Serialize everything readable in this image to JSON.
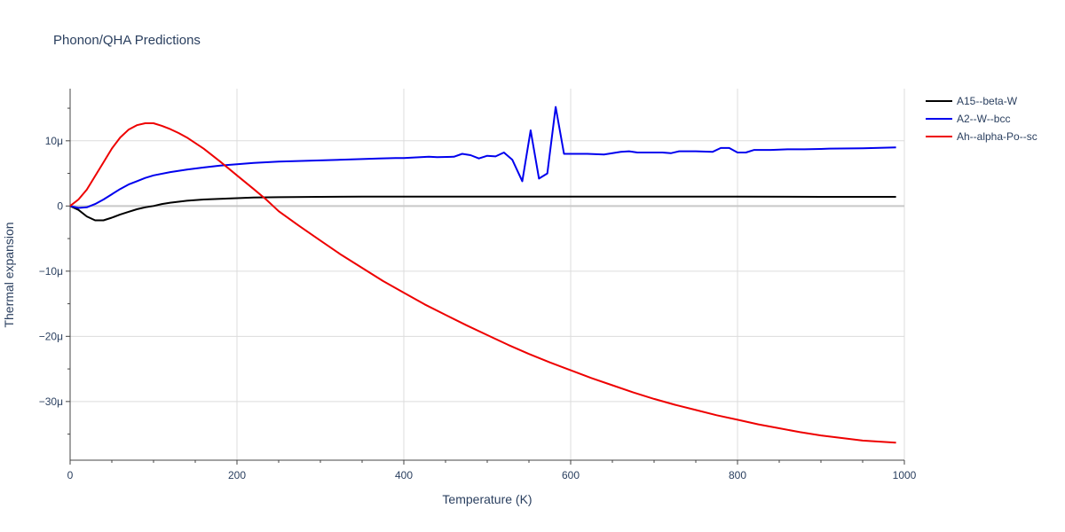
{
  "chart_data": {
    "type": "line",
    "title": "Phonon/QHA Predictions",
    "xlabel": "Temperature (K)",
    "ylabel": "Thermal expansion",
    "xlim": [
      0,
      1000
    ],
    "ylim": [
      -39,
      18
    ],
    "x_ticks": [
      0,
      200,
      400,
      600,
      800,
      1000
    ],
    "x_tick_labels": [
      "0",
      "200",
      "400",
      "600",
      "800",
      "1000"
    ],
    "y_ticks": [
      -30,
      -20,
      -10,
      0,
      10
    ],
    "y_tick_labels": [
      "−30μ",
      "−20μ",
      "−10μ",
      "0",
      "10μ"
    ],
    "grid": true,
    "legend_position": "top-right",
    "series": [
      {
        "name": "A15--beta-W",
        "color": "#000000",
        "x": [
          0,
          10,
          20,
          30,
          40,
          50,
          60,
          70,
          80,
          90,
          100,
          110,
          120,
          140,
          160,
          180,
          200,
          220,
          250,
          300,
          350,
          400,
          450,
          500,
          550,
          600,
          700,
          800,
          900,
          990
        ],
        "y": [
          0,
          -0.6,
          -1.6,
          -2.2,
          -2.2,
          -1.8,
          -1.3,
          -0.9,
          -0.5,
          -0.2,
          0.0,
          0.3,
          0.5,
          0.8,
          1.0,
          1.1,
          1.2,
          1.3,
          1.35,
          1.4,
          1.45,
          1.45,
          1.45,
          1.45,
          1.45,
          1.45,
          1.45,
          1.45,
          1.4,
          1.4
        ]
      },
      {
        "name": "A2--W--bcc",
        "color": "#0000ee",
        "x": [
          0,
          10,
          20,
          30,
          40,
          50,
          60,
          70,
          80,
          90,
          100,
          120,
          140,
          160,
          180,
          200,
          220,
          250,
          300,
          350,
          370,
          390,
          400,
          420,
          430,
          440,
          460,
          470,
          480,
          490,
          500,
          510,
          520,
          530,
          542,
          552,
          562,
          572,
          582,
          592,
          600,
          620,
          640,
          660,
          670,
          680,
          700,
          710,
          720,
          730,
          750,
          770,
          780,
          790,
          800,
          810,
          820,
          840,
          860,
          880,
          900,
          910,
          950,
          990
        ],
        "y": [
          0,
          -0.3,
          -0.2,
          0.3,
          1.0,
          1.8,
          2.6,
          3.3,
          3.8,
          4.3,
          4.7,
          5.2,
          5.6,
          5.9,
          6.2,
          6.4,
          6.6,
          6.8,
          7.0,
          7.2,
          7.3,
          7.35,
          7.35,
          7.5,
          7.55,
          7.5,
          7.55,
          8.0,
          7.8,
          7.3,
          7.7,
          7.6,
          8.2,
          7.1,
          3.8,
          11.6,
          4.2,
          5.0,
          15.2,
          8.0,
          8.0,
          8.0,
          7.9,
          8.3,
          8.4,
          8.2,
          8.2,
          8.2,
          8.1,
          8.4,
          8.4,
          8.3,
          8.9,
          8.9,
          8.2,
          8.2,
          8.6,
          8.6,
          8.7,
          8.7,
          8.75,
          8.8,
          8.85,
          9.0
        ]
      },
      {
        "name": "Ah--alpha-Po--sc",
        "color": "#ee0000",
        "x": [
          0,
          10,
          20,
          30,
          40,
          50,
          60,
          70,
          80,
          90,
          100,
          110,
          120,
          130,
          140,
          160,
          180,
          200,
          220,
          235,
          250,
          275,
          300,
          325,
          350,
          375,
          400,
          425,
          450,
          475,
          500,
          525,
          550,
          575,
          600,
          625,
          650,
          675,
          700,
          725,
          750,
          775,
          800,
          825,
          850,
          875,
          900,
          925,
          950,
          975,
          990
        ],
        "y": [
          0,
          1.0,
          2.5,
          4.6,
          6.7,
          8.8,
          10.5,
          11.7,
          12.4,
          12.7,
          12.7,
          12.3,
          11.8,
          11.2,
          10.5,
          8.8,
          6.8,
          4.7,
          2.6,
          1.0,
          -0.8,
          -3.1,
          -5.3,
          -7.5,
          -9.5,
          -11.5,
          -13.3,
          -15.1,
          -16.7,
          -18.3,
          -19.8,
          -21.3,
          -22.7,
          -24.0,
          -25.2,
          -26.4,
          -27.5,
          -28.6,
          -29.6,
          -30.5,
          -31.3,
          -32.1,
          -32.8,
          -33.5,
          -34.1,
          -34.7,
          -35.2,
          -35.6,
          -36.0,
          -36.2,
          -36.3
        ]
      }
    ]
  }
}
